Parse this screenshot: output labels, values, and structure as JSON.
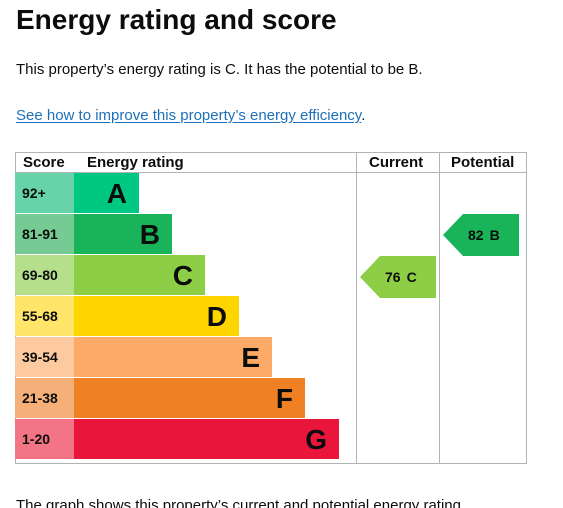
{
  "page": {
    "title": "Energy rating and score",
    "summary": "This property’s energy rating is C. It has the potential to be B.",
    "link_text": "See how to improve this property’s energy efficiency",
    "link_suffix": ".",
    "footer_text": "The graph shows this property’s current and potential energy rating."
  },
  "table": {
    "headers": {
      "score": "Score",
      "rating": "Energy rating",
      "current": "Current",
      "potential": "Potential"
    },
    "bands": [
      {
        "score": "92+",
        "letter": "A",
        "color": "#00c781",
        "score_bg": "#67d3a9"
      },
      {
        "score": "81-91",
        "letter": "B",
        "color": "#19b459",
        "score_bg": "#75cb93"
      },
      {
        "score": "69-80",
        "letter": "C",
        "color": "#8dce46",
        "score_bg": "#b6df8c"
      },
      {
        "score": "55-68",
        "letter": "D",
        "color": "#ffd500",
        "score_bg": "#ffe56a"
      },
      {
        "score": "39-54",
        "letter": "E",
        "color": "#fcaa65",
        "score_bg": "#fdcaa0"
      },
      {
        "score": "21-38",
        "letter": "F",
        "color": "#ef8023",
        "score_bg": "#f5b07a"
      },
      {
        "score": "1-20",
        "letter": "G",
        "color": "#e9153b",
        "score_bg": "#f27485"
      }
    ],
    "current": {
      "score": "76",
      "letter": "C",
      "color": "#8dce46"
    },
    "potential": {
      "score": "82",
      "letter": "B",
      "color": "#19b459"
    }
  }
}
